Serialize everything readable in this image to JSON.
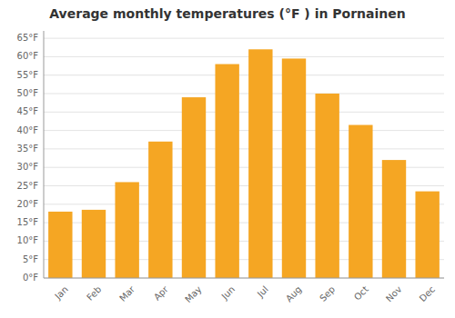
{
  "chart_data": {
    "type": "bar",
    "title": "Average monthly temperatures (°F ) in Pornainen",
    "categories": [
      "Jan",
      "Feb",
      "Mar",
      "Apr",
      "May",
      "Jun",
      "Jul",
      "Aug",
      "Sep",
      "Oct",
      "Nov",
      "Dec"
    ],
    "values": [
      18,
      18.5,
      26,
      37,
      49,
      58,
      62,
      59.5,
      50,
      41.5,
      32,
      23.5
    ],
    "color": "#F5A623",
    "ylim": [
      0,
      67
    ],
    "yticks": [
      {
        "value": 0,
        "label": "0°F"
      },
      {
        "value": 5,
        "label": "5°F"
      },
      {
        "value": 10,
        "label": "10°F"
      },
      {
        "value": 15,
        "label": "15°F"
      },
      {
        "value": 20,
        "label": "20°F"
      },
      {
        "value": 25,
        "label": "25°F"
      },
      {
        "value": 30,
        "label": "30°F"
      },
      {
        "value": 35,
        "label": "35°F"
      },
      {
        "value": 40,
        "label": "40°F"
      },
      {
        "value": 45,
        "label": "45°F"
      },
      {
        "value": 50,
        "label": "50°F"
      },
      {
        "value": 55,
        "label": "55°F"
      },
      {
        "value": 60,
        "label": "60°F"
      },
      {
        "value": 65,
        "label": "65°F"
      }
    ],
    "grid": true
  }
}
